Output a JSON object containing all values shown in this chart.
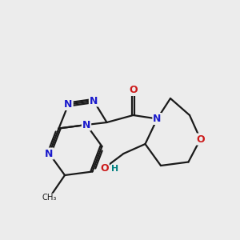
{
  "bg_color": "#ececec",
  "bond_color": "#1a1a1a",
  "N_color": "#1a1acc",
  "O_color": "#cc1a1a",
  "OH_color": "#008080",
  "font_size": 9,
  "bond_width": 1.6,
  "dbo": 0.055,
  "xlim": [
    0,
    10
  ],
  "ylim": [
    0,
    10
  ]
}
